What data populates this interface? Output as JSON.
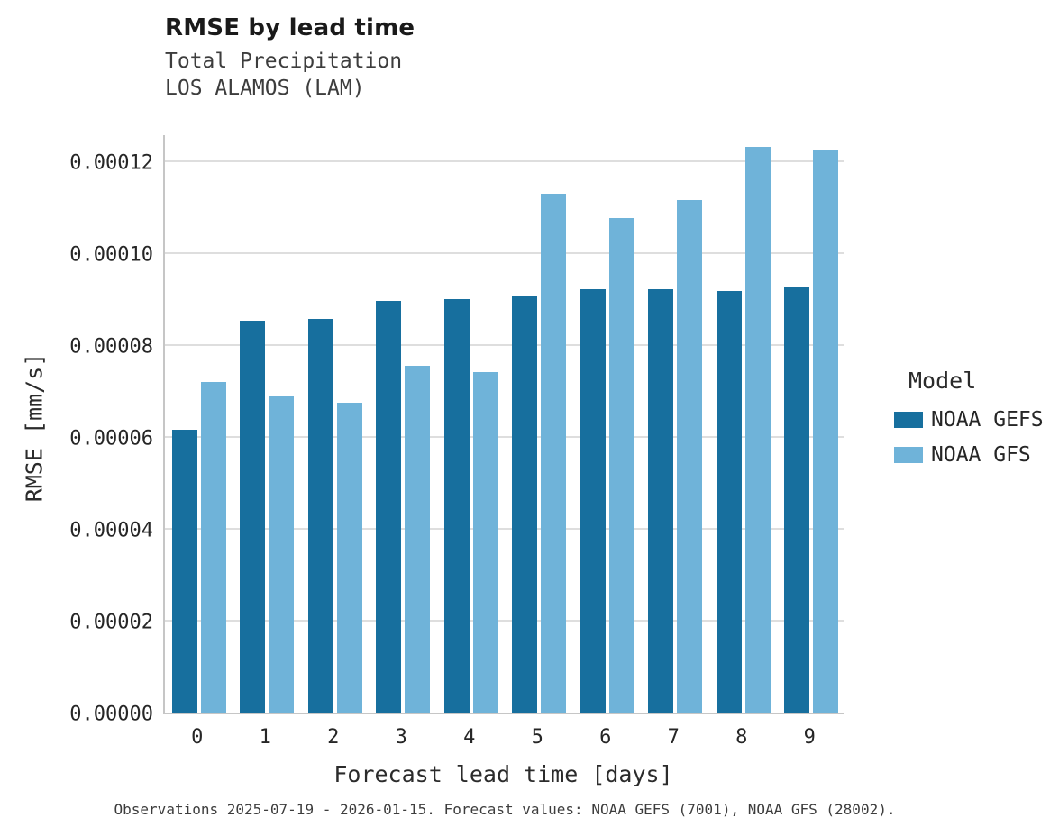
{
  "chart_data": {
    "type": "bar",
    "title": "RMSE by lead time",
    "subtitle": [
      "Total Precipitation",
      "LOS ALAMOS (LAM)"
    ],
    "xlabel": "Forecast lead time [days]",
    "ylabel": "RMSE [mm/s]",
    "categories": [
      "0",
      "1",
      "2",
      "3",
      "4",
      "5",
      "6",
      "7",
      "8",
      "9"
    ],
    "series": [
      {
        "name": "NOAA GEFS",
        "color": "#176f9e",
        "values": [
          6.15e-05,
          8.52e-05,
          8.56e-05,
          8.95e-05,
          9e-05,
          9.05e-05,
          9.22e-05,
          9.22e-05,
          9.17e-05,
          9.24e-05
        ]
      },
      {
        "name": "NOAA GFS",
        "color": "#6fb3d9",
        "values": [
          7.2e-05,
          6.87e-05,
          6.75e-05,
          7.55e-05,
          7.4e-05,
          0.0001128,
          0.0001075,
          0.0001115,
          0.000123,
          0.0001222
        ]
      }
    ],
    "ylim": [
      0,
      0.000126
    ],
    "ytick_values": [
      0,
      2e-05,
      4e-05,
      6e-05,
      8e-05,
      0.0001,
      0.00012
    ],
    "yticks": [
      "0.00000",
      "0.00002",
      "0.00004",
      "0.00006",
      "0.00008",
      "0.00010",
      "0.00012"
    ],
    "grid": true,
    "legend": {
      "title": "Model",
      "position": "right"
    },
    "caption": "Observations 2025-07-19 - 2026-01-15. Forecast values: NOAA GEFS (7001), NOAA GFS (28002)."
  }
}
